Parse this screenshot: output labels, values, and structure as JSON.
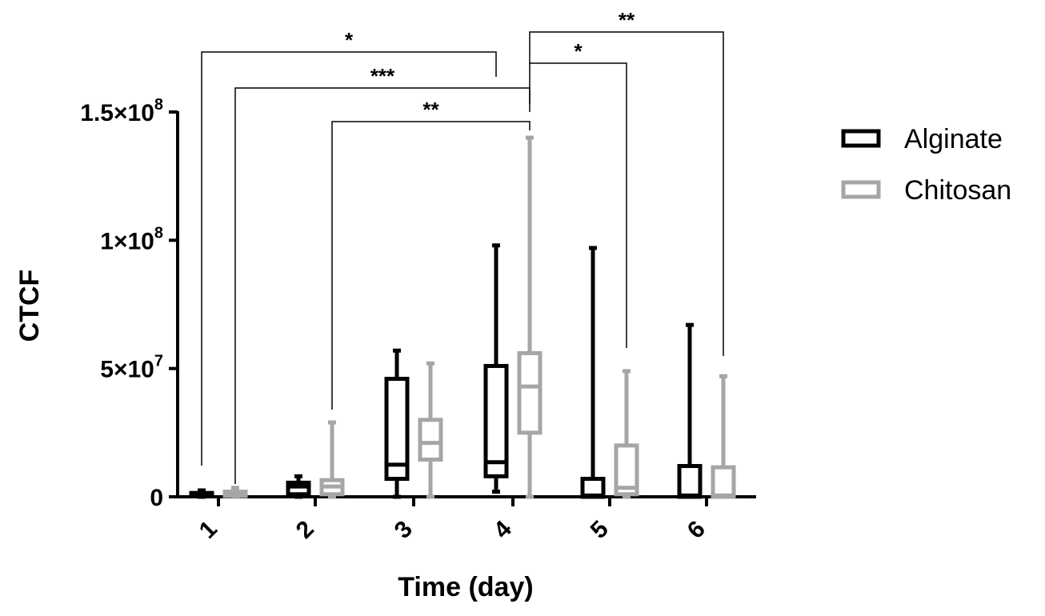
{
  "chart_data": {
    "type": "box",
    "xlabel": "Time (day)",
    "ylabel": "CTCF",
    "ylim": [
      0,
      150000000
    ],
    "yticks": [
      {
        "value": 0,
        "label_mantissa": "0",
        "label_exp": ""
      },
      {
        "value": 50000000,
        "label_mantissa": "5×10",
        "label_exp": "7"
      },
      {
        "value": 100000000,
        "label_mantissa": "1×10",
        "label_exp": "8"
      },
      {
        "value": 150000000,
        "label_mantissa": "1.5×10",
        "label_exp": "8"
      }
    ],
    "categories": [
      "1",
      "2",
      "3",
      "4",
      "5",
      "6"
    ],
    "legend_position": "right",
    "series": [
      {
        "name": "Alginate",
        "color": "#000000",
        "boxes": [
          {
            "min": 0,
            "q1": 200000,
            "median": 800000,
            "q3": 1500000,
            "max": 2500000
          },
          {
            "min": 0,
            "q1": 1000000,
            "median": 4000000,
            "q3": 5500000,
            "max": 8000000
          },
          {
            "min": 0,
            "q1": 7000000,
            "median": 12500000,
            "q3": 46000000,
            "max": 57000000
          },
          {
            "min": 2000000,
            "q1": 8000000,
            "median": 13500000,
            "q3": 51000000,
            "max": 98000000
          },
          {
            "min": 0,
            "q1": 0,
            "median": 500000,
            "q3": 7000000,
            "max": 97000000
          },
          {
            "min": 0,
            "q1": 0,
            "median": 500000,
            "q3": 12000000,
            "max": 67000000
          }
        ]
      },
      {
        "name": "Chitosan",
        "color": "#a6a6a6",
        "boxes": [
          {
            "min": 0,
            "q1": 300000,
            "median": 1000000,
            "q3": 2000000,
            "max": 3500000
          },
          {
            "min": 0,
            "q1": 1000000,
            "median": 4000000,
            "q3": 6500000,
            "max": 29000000
          },
          {
            "min": 0,
            "q1": 14500000,
            "median": 21000000,
            "q3": 30000000,
            "max": 52000000
          },
          {
            "min": 0,
            "q1": 25000000,
            "median": 43000000,
            "q3": 56000000,
            "max": 140000000
          },
          {
            "min": 0,
            "q1": 1000000,
            "median": 3500000,
            "q3": 20000000,
            "max": 49000000
          },
          {
            "min": 0,
            "q1": 0,
            "median": 500000,
            "q3": 11500000,
            "max": 47000000
          }
        ]
      }
    ],
    "significance": [
      {
        "from_category": "1",
        "from_series": "Alginate",
        "to_category": "4",
        "to_series": "Alginate",
        "label": "*"
      },
      {
        "from_category": "1",
        "from_series": "Chitosan",
        "to_category": "4",
        "to_series": "Chitosan",
        "label": "***"
      },
      {
        "from_category": "2",
        "from_series": "Chitosan",
        "to_category": "4",
        "to_series": "Chitosan",
        "label": "**"
      },
      {
        "from_category": "4",
        "from_series": "Chitosan",
        "to_category": "5",
        "to_series": "Chitosan",
        "label": "*"
      },
      {
        "from_category": "4",
        "from_series": "Chitosan",
        "to_category": "6",
        "to_series": "Chitosan",
        "label": "**"
      }
    ]
  }
}
